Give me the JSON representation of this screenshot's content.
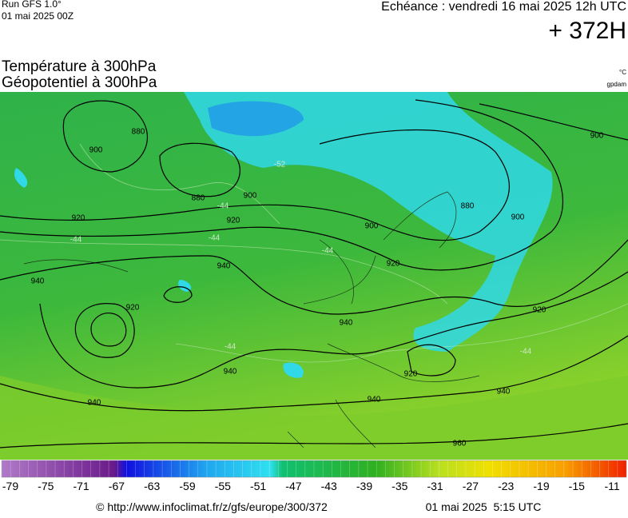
{
  "header": {
    "run": "Run GFS 1.0°",
    "date": "01 mai 2025 00Z",
    "echeance": "Echéance : vendredi 16 mai 2025 12h UTC",
    "lead": "+ 372H"
  },
  "title": {
    "line1": "Température à 300hPa",
    "line2": "Géopotentiel à 300hPa"
  },
  "units": {
    "temperature": "°C",
    "geopotential": "gpdam"
  },
  "geopotential_labels": [
    880,
    900,
    880,
    900,
    920,
    920,
    900,
    880,
    900,
    940,
    940,
    920,
    940,
    920,
    920,
    940,
    940,
    920,
    940,
    940,
    960,
    900
  ],
  "temperature_labels": [
    -52,
    -44,
    -44,
    -44,
    -44,
    -44,
    -44
  ],
  "scale": {
    "ticks": [
      -79,
      -75,
      -71,
      -67,
      -63,
      -59,
      -55,
      -51,
      -47,
      -43,
      -39,
      -35,
      -31,
      -27,
      -23,
      -19,
      -15,
      -11
    ]
  },
  "footer": {
    "url": "© http://www.infoclimat.fr/z/gfs/europe/300/372",
    "time": "01 mai 2025  5:15 UTC"
  }
}
